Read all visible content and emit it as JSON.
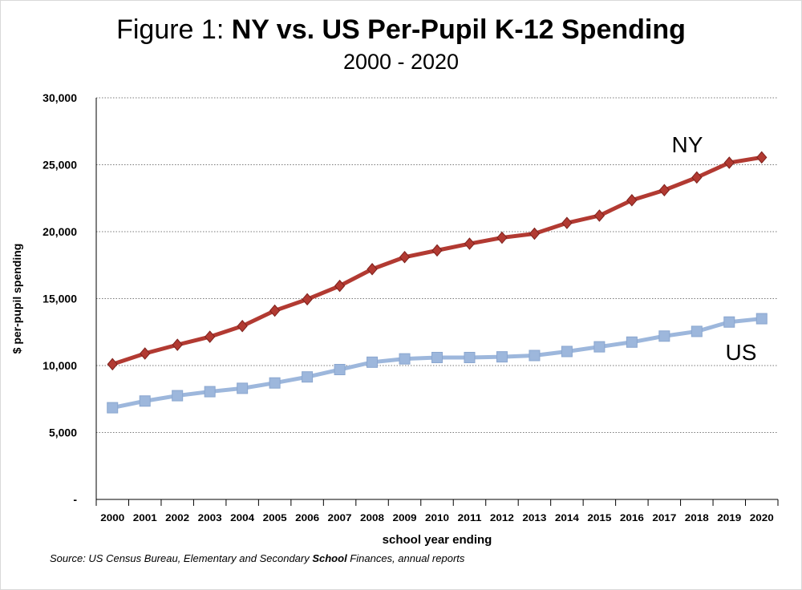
{
  "title_prefix": "Figure 1: ",
  "title_bold": "NY vs. US Per-Pupil K-12 Spending",
  "subtitle": "2000 - 2020",
  "source_pre": "Source: US Census Bureau, Elementary and Secondary ",
  "source_bold": "School",
  "source_post": " Finances, annual reports",
  "chart_data": {
    "type": "line",
    "title": "Figure 1: NY vs. US Per-Pupil K-12 Spending",
    "subtitle": "2000 - 2020",
    "xlabel": "school year ending",
    "ylabel": "$ per-pupil spending",
    "ylim": [
      0,
      30000
    ],
    "grid": true,
    "yticks": [
      0,
      5000,
      10000,
      15000,
      20000,
      25000,
      30000
    ],
    "ytick_labels": [
      "-",
      "5,000",
      "10,000",
      "15,000",
      "20,000",
      "25,000",
      "30,000"
    ],
    "categories": [
      "2000",
      "2001",
      "2002",
      "2003",
      "2004",
      "2005",
      "2006",
      "2007",
      "2008",
      "2009",
      "2010",
      "2011",
      "2012",
      "2013",
      "2014",
      "2015",
      "2016",
      "2017",
      "2018",
      "2019",
      "2020"
    ],
    "series": [
      {
        "name": "NY",
        "color": "#b23a32",
        "marker": "diamond",
        "values": [
          10100,
          10900,
          11550,
          12150,
          12950,
          14100,
          14950,
          15950,
          17200,
          18100,
          18600,
          19100,
          19550,
          19850,
          20650,
          21200,
          22350,
          23100,
          24050,
          25150,
          25550
        ]
      },
      {
        "name": "US",
        "color": "#9db7dc",
        "marker": "square",
        "values": [
          6850,
          7350,
          7750,
          8050,
          8300,
          8700,
          9150,
          9700,
          10250,
          10500,
          10600,
          10600,
          10650,
          10750,
          11050,
          11400,
          11750,
          12200,
          12550,
          13250,
          13500
        ]
      }
    ],
    "series_labels": [
      "NY",
      "US"
    ]
  }
}
